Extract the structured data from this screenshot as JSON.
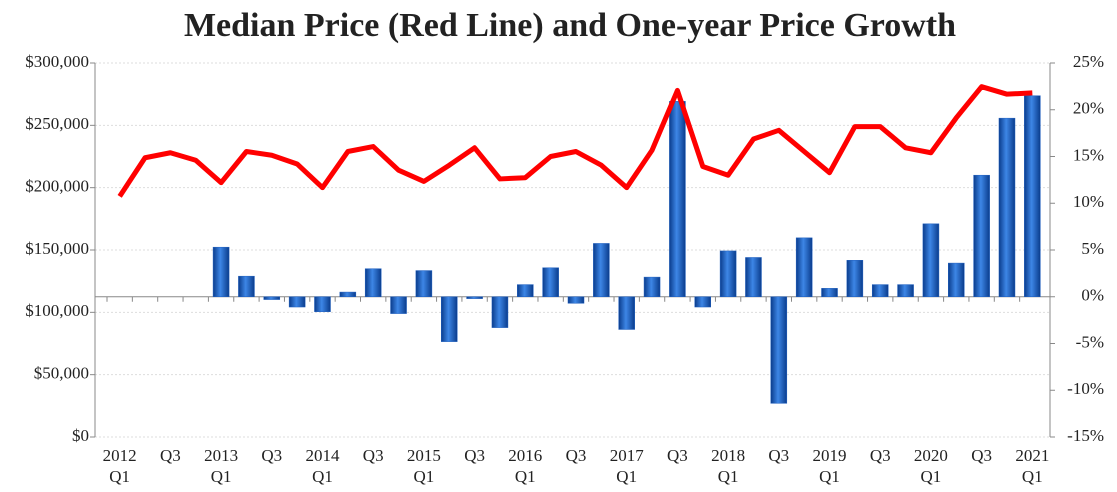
{
  "chart_data": {
    "type": "bar",
    "title": "Median Price (Red Line) and One-year Price Growth",
    "categories": [
      [
        "2012",
        "Q1"
      ],
      null,
      [
        "Q3"
      ],
      null,
      [
        "2013",
        "Q1"
      ],
      null,
      [
        "Q3"
      ],
      null,
      [
        "2014",
        "Q1"
      ],
      null,
      [
        "Q3"
      ],
      null,
      [
        "2015",
        "Q1"
      ],
      null,
      [
        "Q3"
      ],
      null,
      [
        "2016",
        "Q1"
      ],
      null,
      [
        "Q3"
      ],
      null,
      [
        "2017",
        "Q1"
      ],
      null,
      [
        "Q3"
      ],
      null,
      [
        "2018",
        "Q1"
      ],
      null,
      [
        "Q3"
      ],
      null,
      [
        "2019",
        "Q1"
      ],
      null,
      [
        "Q3"
      ],
      null,
      [
        "2020",
        "Q1"
      ],
      null,
      [
        "Q3"
      ],
      null,
      [
        "2021",
        "Q1"
      ]
    ],
    "series": [
      {
        "type": "bar",
        "axis": "y2",
        "color": "#1f5fbf",
        "values": [
          null,
          null,
          null,
          null,
          5.3,
          2.2,
          -0.3,
          -1.1,
          -1.6,
          0.5,
          3.0,
          -1.8,
          2.8,
          -4.8,
          -0.2,
          -3.3,
          1.3,
          3.1,
          -0.7,
          5.7,
          -3.5,
          2.1,
          20.9,
          -1.1,
          4.9,
          4.2,
          -11.4,
          6.3,
          0.9,
          3.9,
          1.3,
          1.3,
          7.8,
          3.6,
          13.0,
          19.1,
          21.5
        ]
      },
      {
        "type": "line",
        "color": "#ff0000",
        "values": [
          193000,
          224000,
          228000,
          222000,
          204000,
          229000,
          226000,
          219000,
          200000,
          229000,
          233000,
          214000,
          205000,
          218000,
          232000,
          207000,
          208000,
          225000,
          229000,
          218000,
          200000,
          230000,
          278000,
          217000,
          210000,
          239000,
          246000,
          229000,
          212000,
          249000,
          249000,
          232000,
          228000,
          256000,
          281000,
          275000,
          276000
        ]
      }
    ],
    "ylim": [
      0,
      300000
    ],
    "yticks": [
      {
        "value": 0,
        "label": "$0"
      },
      {
        "value": 50000,
        "label": "$50,000"
      },
      {
        "value": 100000,
        "label": "$100,000"
      },
      {
        "value": 150000,
        "label": "$150,000"
      },
      {
        "value": 200000,
        "label": "$200,000"
      },
      {
        "value": 250000,
        "label": "$250,000"
      },
      {
        "value": 300000,
        "label": "$300,000"
      }
    ],
    "y2lim": [
      -15,
      25
    ],
    "y2ticks": [
      {
        "value": -15,
        "label": "-15%"
      },
      {
        "value": -10,
        "label": "-10%"
      },
      {
        "value": -5,
        "label": "-5%"
      },
      {
        "value": 0,
        "label": "0%"
      },
      {
        "value": 5,
        "label": "5%"
      },
      {
        "value": 10,
        "label": "10%"
      },
      {
        "value": 15,
        "label": "15%"
      },
      {
        "value": 20,
        "label": "20%"
      },
      {
        "value": 25,
        "label": "25%"
      }
    ],
    "grid": true
  }
}
